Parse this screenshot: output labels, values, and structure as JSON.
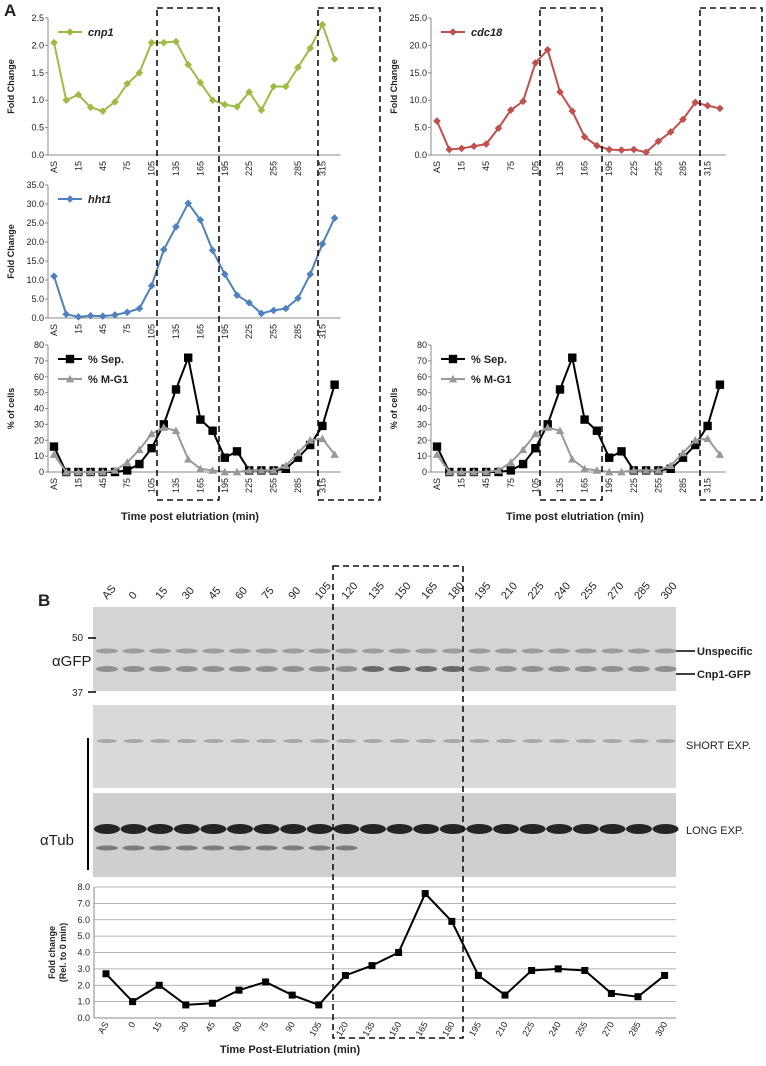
{
  "panels": [
    "A",
    "B"
  ],
  "chart_data": [
    {
      "type": "line",
      "ylabel": "Fold Change",
      "legend": "upper left",
      "categories": [
        "AS",
        null,
        "15",
        null,
        "45",
        null,
        "75",
        null,
        "105",
        null,
        "135",
        null,
        "165",
        null,
        "195",
        null,
        "225",
        null,
        "255",
        null,
        "285",
        null,
        "315",
        null
      ],
      "series": [
        {
          "name": "cnp1",
          "color": "#9dbb45",
          "marker": "diamond",
          "values": [
            2.05,
            1.0,
            1.1,
            0.87,
            0.8,
            0.97,
            1.3,
            1.5,
            2.05,
            2.05,
            2.07,
            1.65,
            1.32,
            1.0,
            0.92,
            0.88,
            1.15,
            0.82,
            1.25,
            1.25,
            1.6,
            1.95,
            2.38,
            1.75
          ]
        }
      ],
      "ylim": [
        0,
        2.5
      ],
      "yticks": [
        {
          "value": 0,
          "label": "0.0"
        },
        0.5,
        {
          "value": 1,
          "label": "1.0"
        },
        1.5,
        {
          "value": 2,
          "label": "2.0"
        },
        2.5
      ]
    },
    {
      "type": "line",
      "ylabel": "Fold Change",
      "legend": "upper left",
      "categories": [
        "AS",
        null,
        "15",
        null,
        "45",
        null,
        "75",
        null,
        "105",
        null,
        "135",
        null,
        "165",
        null,
        "195",
        null,
        "225",
        null,
        "255",
        null,
        "285",
        null,
        "315",
        null
      ],
      "series": [
        {
          "name": "cdc18",
          "color": "#c0504d",
          "marker": "diamond",
          "values": [
            6.2,
            1.0,
            1.2,
            1.6,
            2.0,
            4.9,
            8.2,
            9.8,
            16.8,
            19.2,
            11.5,
            8.0,
            3.3,
            1.7,
            1.0,
            0.9,
            1.0,
            0.5,
            2.5,
            4.2,
            6.5,
            9.6,
            9.0,
            8.5
          ]
        }
      ],
      "ylim": [
        0,
        25
      ],
      "yticks": [
        {
          "value": 0,
          "label": "0.0"
        },
        {
          "value": 5,
          "label": "5.0"
        },
        {
          "value": 10,
          "label": "10.0"
        },
        {
          "value": 15,
          "label": "15.0"
        },
        {
          "value": 20,
          "label": "20.0"
        },
        {
          "value": 25,
          "label": "25.0"
        }
      ]
    },
    {
      "type": "line",
      "ylabel": "Fold Change",
      "legend": "upper left",
      "categories": [
        "AS",
        null,
        "15",
        null,
        "45",
        null,
        "75",
        null,
        "105",
        null,
        "135",
        null,
        "165",
        null,
        "195",
        null,
        "225",
        null,
        "255",
        null,
        "285",
        null,
        "315",
        null
      ],
      "series": [
        {
          "name": "hht1",
          "color": "#4f81bd",
          "marker": "diamond",
          "values": [
            11,
            1.0,
            0.3,
            0.6,
            0.5,
            0.8,
            1.5,
            2.5,
            8.5,
            18,
            24,
            30.2,
            25.8,
            17.8,
            11.5,
            6,
            4,
            1.2,
            2.0,
            2.5,
            5.2,
            11.5,
            19.5,
            26.3
          ]
        }
      ],
      "ylim": [
        0,
        35
      ],
      "yticks": [
        {
          "value": 0,
          "label": "0.0"
        },
        {
          "value": 5,
          "label": "5.0"
        },
        {
          "value": 10,
          "label": "10.0"
        },
        {
          "value": 15,
          "label": "15.0"
        },
        {
          "value": 20,
          "label": "20.0"
        },
        {
          "value": 25,
          "label": "25.0"
        },
        {
          "value": 30,
          "label": "30.0"
        },
        {
          "value": 35,
          "label": "35.0"
        }
      ]
    },
    {
      "type": "line",
      "ylabel": "% of cells",
      "xlabel": "Time post elutriation (min)",
      "legend": "upper left",
      "categories": [
        "AS",
        null,
        "15",
        null,
        "45",
        null,
        "75",
        null,
        "105",
        null,
        "135",
        null,
        "165",
        null,
        "195",
        null,
        "225",
        null,
        "255",
        null,
        "285",
        null,
        "315",
        null
      ],
      "series": [
        {
          "name": "% Sep.",
          "color": "#000000",
          "marker": "square",
          "values": [
            16,
            0,
            0,
            0,
            0,
            0,
            1,
            5,
            15,
            30,
            52,
            72,
            33,
            26,
            9,
            13,
            1,
            1,
            1,
            2,
            9,
            17,
            29,
            55
          ]
        },
        {
          "name": "% M-G1",
          "color": "#999999",
          "marker": "triangle",
          "values": [
            11,
            0,
            0,
            0,
            0,
            1,
            6,
            14,
            24,
            28,
            26,
            8,
            2,
            1,
            0,
            0,
            1,
            1,
            1,
            4,
            12,
            20,
            21,
            11
          ]
        }
      ],
      "ylim": [
        0,
        80
      ],
      "yticks": [
        0,
        10,
        20,
        30,
        40,
        50,
        60,
        70,
        80
      ]
    },
    {
      "type": "line",
      "ylabel": "% of cells",
      "xlabel": "Time post elutriation (min)",
      "legend": "upper left",
      "categories": [
        "AS",
        null,
        "15",
        null,
        "45",
        null,
        "75",
        null,
        "105",
        null,
        "135",
        null,
        "165",
        null,
        "195",
        null,
        "225",
        null,
        "255",
        null,
        "285",
        null,
        "315",
        null
      ],
      "series": [
        {
          "name": "% Sep.",
          "color": "#000000",
          "marker": "square",
          "values": [
            16,
            0,
            0,
            0,
            0,
            0,
            1,
            5,
            15,
            30,
            52,
            72,
            33,
            26,
            9,
            13,
            1,
            1,
            1,
            2,
            9,
            17,
            29,
            55
          ]
        },
        {
          "name": "% M-G1",
          "color": "#999999",
          "marker": "triangle",
          "values": [
            11,
            0,
            0,
            0,
            0,
            1,
            6,
            14,
            24,
            28,
            26,
            8,
            2,
            1,
            0,
            0,
            1,
            1,
            1,
            4,
            12,
            20,
            21,
            11
          ]
        }
      ],
      "ylim": [
        0,
        80
      ],
      "yticks": [
        0,
        10,
        20,
        30,
        40,
        50,
        60,
        70,
        80
      ]
    },
    {
      "type": "line",
      "ylabel": [
        "Fold change",
        "(Rel. to 0 min)"
      ],
      "xlabel": "Time Post-Elutriation (min)",
      "grid": true,
      "categories": [
        "AS",
        "0",
        "15",
        "30",
        "45",
        "60",
        "75",
        "90",
        "105",
        "120",
        "135",
        "150",
        "165",
        "180",
        "195",
        "210",
        "225",
        "240",
        "255",
        "270",
        "285",
        "300"
      ],
      "series": [
        {
          "color": "#000000",
          "marker": "square",
          "values": [
            2.7,
            1.0,
            2.0,
            0.8,
            0.9,
            1.7,
            2.2,
            1.4,
            0.8,
            2.6,
            3.2,
            4.0,
            7.6,
            5.9,
            2.6,
            1.4,
            2.9,
            3.0,
            2.9,
            1.5,
            1.3,
            2.6
          ]
        }
      ],
      "ylim": [
        0,
        8
      ],
      "yticks": [
        {
          "value": 0,
          "label": "0.0"
        },
        {
          "value": 1,
          "label": "1.0"
        },
        {
          "value": 2,
          "label": "2.0"
        },
        {
          "value": 3,
          "label": "3.0"
        },
        {
          "value": 4,
          "label": "4.0"
        },
        {
          "value": 5,
          "label": "5.0"
        },
        {
          "value": 6,
          "label": "6.0"
        },
        {
          "value": 7,
          "label": "7.0"
        },
        {
          "value": 8,
          "label": "8.0"
        }
      ]
    }
  ],
  "blot": {
    "lanes": [
      "AS",
      "0",
      "15",
      "30",
      "45",
      "60",
      "75",
      "90",
      "105",
      "120",
      "135",
      "150",
      "165",
      "180",
      "195",
      "210",
      "225",
      "240",
      "255",
      "270",
      "285",
      "300"
    ],
    "antibodies": [
      "αGFP",
      "αTub"
    ],
    "markers": [
      "50",
      "37"
    ],
    "bands": [
      "Unspecific",
      "Cnp1-GFP"
    ],
    "exposures": [
      "SHORT EXP.",
      "LONG EXP."
    ]
  }
}
